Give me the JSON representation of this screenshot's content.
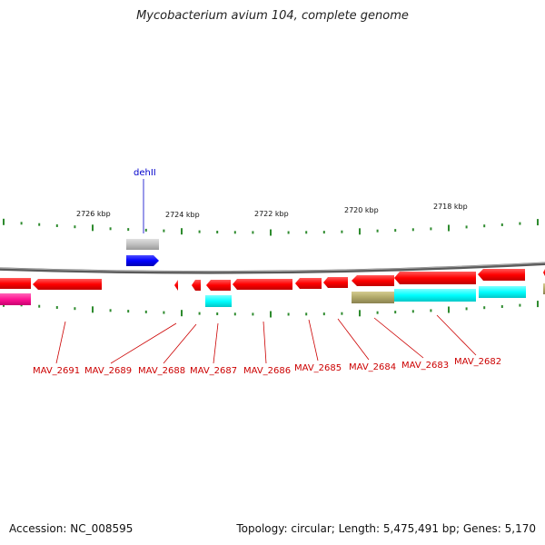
{
  "title": "Mycobacterium avium 104, complete genome",
  "footer": {
    "accession": "Accession: NC_008595",
    "info": "Topology: circular; Length: 5,475,491 bp; Genes: 5,170"
  },
  "colors": {
    "backbone": "#888888",
    "tick": "#2e8b2e",
    "gene_forward": "#0000ff",
    "gene_reverse": "#ff0000",
    "gene_label_reverse": "#cc0000",
    "gene_label_forward": "#0000cc",
    "feature_magenta": "#ff1493",
    "feature_cyan": "#00ffff",
    "feature_olive": "#b0a868",
    "feature_gray": "#b8b8b8"
  },
  "scale_labels": [
    "2726 kbp",
    "2724 kbp",
    "2722 kbp",
    "2720 kbp",
    "2718 kbp"
  ],
  "gene_labels": {
    "forward": [
      "dehII"
    ],
    "reverse": [
      "MAV_2691",
      "MAV_2689",
      "MAV_2688",
      "MAV_2687",
      "MAV_2686",
      "MAV_2685",
      "MAV_2684",
      "MAV_2683",
      "MAV_2682"
    ]
  }
}
